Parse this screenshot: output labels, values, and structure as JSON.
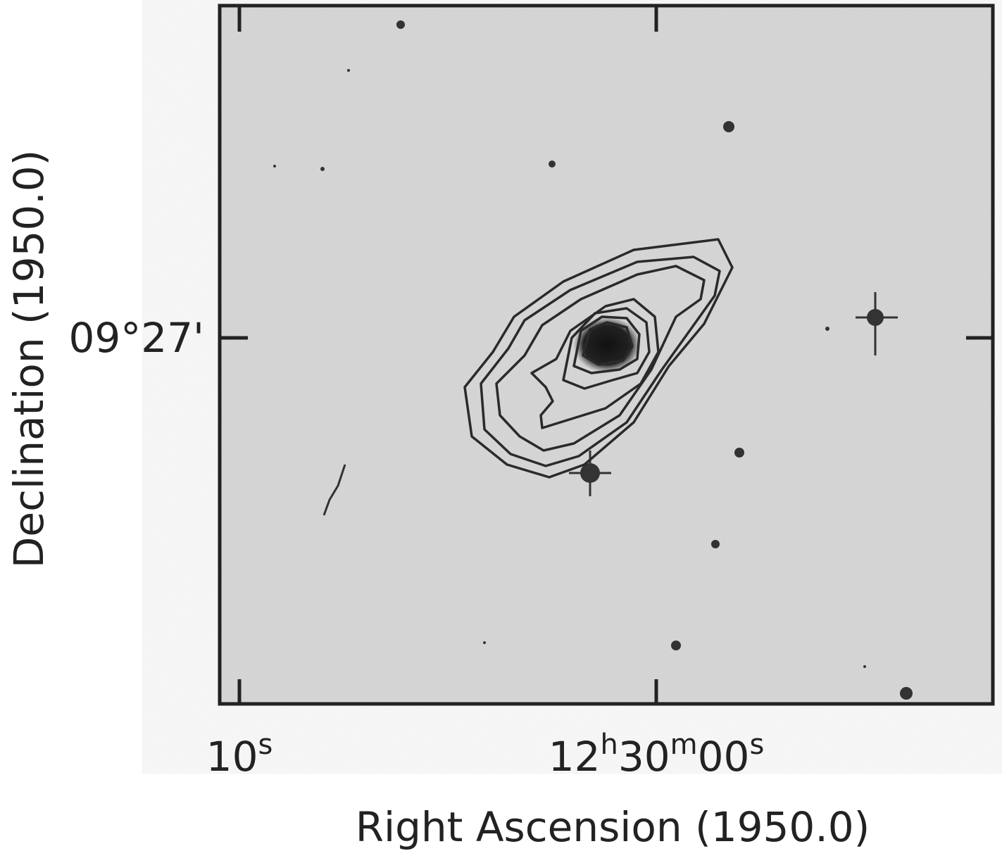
{
  "figure": {
    "y_axis": {
      "label": "Declination (1950.0)",
      "ticks": [
        [
          {
            "text": "09°27'"
          }
        ]
      ]
    },
    "x_axis": {
      "label": "Right Ascension (1950.0)",
      "ticks": [
        [
          {
            "text": "10"
          },
          {
            "sup": "s"
          }
        ],
        [
          {
            "text": "12"
          },
          {
            "sup": "h"
          },
          {
            "text": "30"
          },
          {
            "sup": "m"
          },
          {
            "text": "00"
          },
          {
            "sup": "s"
          }
        ]
      ]
    }
  }
}
